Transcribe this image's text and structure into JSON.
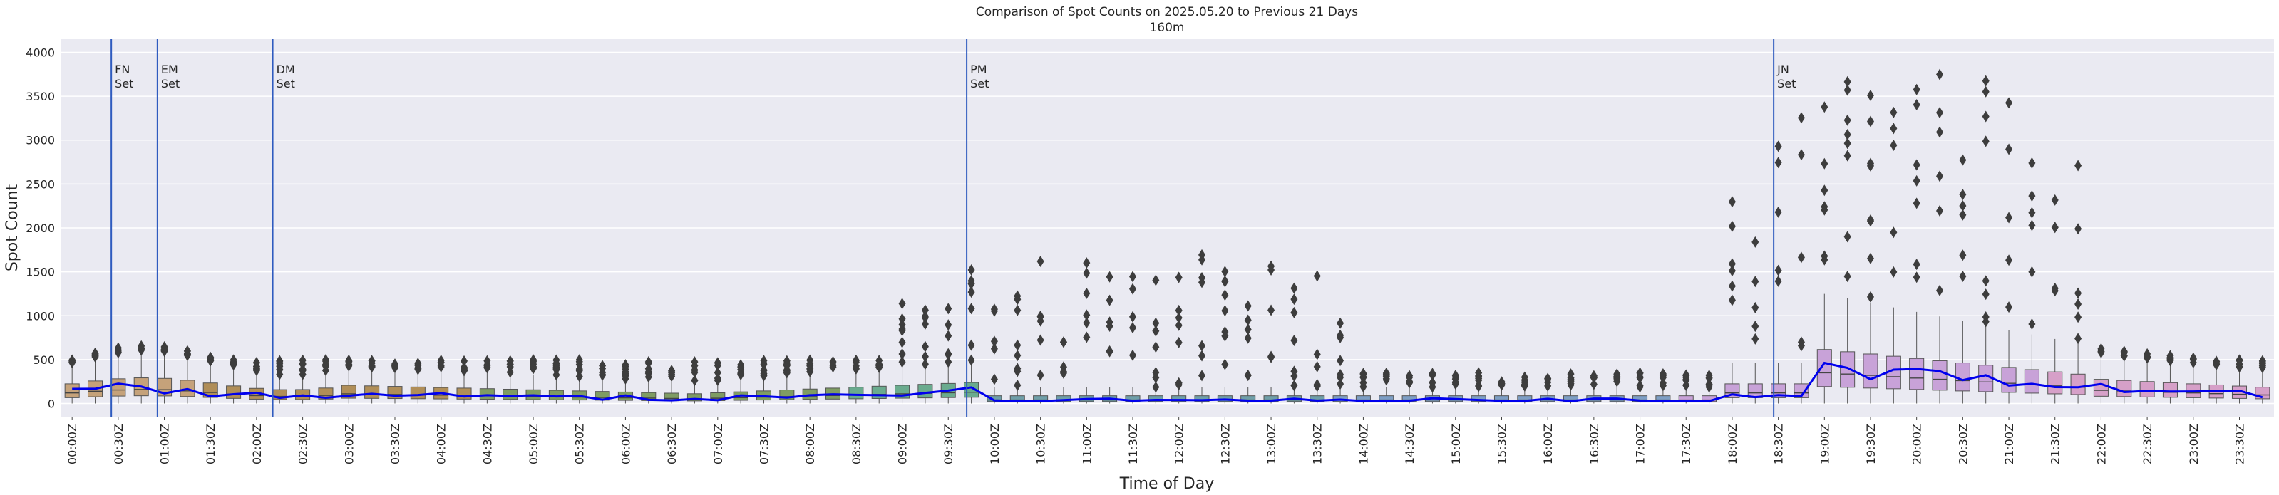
{
  "chart_data": {
    "type": "box",
    "title": "Comparison of Spot Counts on 2025.05.20 to Previous 21 Days",
    "subtitle": "160m",
    "xlabel": "Time of Day",
    "ylabel": "Spot Count",
    "ylim": [
      -150,
      4150
    ],
    "yticks": [
      0,
      500,
      1000,
      1500,
      2000,
      2500,
      3000,
      3500,
      4000
    ],
    "slots_per_day": 96,
    "xtick_labels": [
      "00:00Z",
      "00:30Z",
      "01:00Z",
      "01:30Z",
      "02:00Z",
      "02:30Z",
      "03:00Z",
      "03:30Z",
      "04:00Z",
      "04:30Z",
      "05:00Z",
      "05:30Z",
      "06:00Z",
      "06:30Z",
      "07:00Z",
      "07:30Z",
      "08:00Z",
      "08:30Z",
      "09:00Z",
      "09:30Z",
      "10:00Z",
      "10:30Z",
      "11:00Z",
      "11:30Z",
      "12:00Z",
      "12:30Z",
      "13:00Z",
      "13:30Z",
      "14:00Z",
      "14:30Z",
      "15:00Z",
      "15:30Z",
      "16:00Z",
      "16:30Z",
      "17:00Z",
      "17:30Z",
      "18:00Z",
      "18:30Z",
      "19:00Z",
      "19:30Z",
      "20:00Z",
      "20:30Z",
      "21:00Z",
      "21:30Z",
      "22:00Z",
      "22:30Z",
      "23:00Z",
      "23:30Z"
    ],
    "events": [
      {
        "label1": "FN",
        "label2": "Set",
        "slot": 2.2
      },
      {
        "label1": "EM",
        "label2": "Set",
        "slot": 4.2
      },
      {
        "label1": "DM",
        "label2": "Set",
        "slot": 9.2
      },
      {
        "label1": "PM",
        "label2": "Set",
        "slot": 39.3
      },
      {
        "label1": "JN",
        "label2": "Set",
        "slot": 74.3
      }
    ],
    "grid": true,
    "legend": "none"
  },
  "colors": {
    "background": "#eaeaf2",
    "grid": "#ffffff",
    "event_line": "#2f5bbf",
    "today_line": "#0000ee",
    "outlier": "#3d3d3d",
    "segment_colors": [
      "#c5a27a",
      "#b08e58",
      "#7f9c63",
      "#6aab8e",
      "#6f9fa8",
      "#7d9ec4",
      "#c8a2d8",
      "#d6a0c8"
    ]
  }
}
